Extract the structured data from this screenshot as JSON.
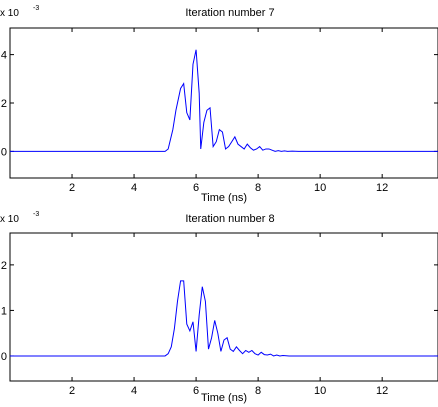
{
  "chart_data": [
    {
      "type": "line",
      "title": "Iteration number 7",
      "xlabel": "Time (ns)",
      "ylabel": "",
      "y_multiplier": {
        "base": "x 10",
        "exponent": "-3"
      },
      "xlim": [
        0,
        13.8
      ],
      "ylim": [
        -0.0011,
        0.0051
      ],
      "xticks": [
        2,
        4,
        6,
        8,
        10,
        12
      ],
      "xtick_labels": [
        "2",
        "4",
        "6",
        "8",
        "10",
        "12"
      ],
      "yticks": [
        0,
        0.002,
        0.004
      ],
      "ytick_labels": [
        "0",
        "2",
        "4"
      ],
      "grid": false,
      "series_color": "#0000ff",
      "series": [
        {
          "x": [
            0.0,
            1.0,
            2.0,
            3.0,
            4.0,
            5.0,
            5.1,
            5.25,
            5.35,
            5.45,
            5.5,
            5.6,
            5.7,
            5.8,
            5.9,
            6.0,
            6.1,
            6.15,
            6.25,
            6.35,
            6.45,
            6.55,
            6.65,
            6.75,
            6.85,
            6.95,
            7.05,
            7.15,
            7.25,
            7.35,
            7.45,
            7.55,
            7.65,
            7.75,
            7.85,
            7.95,
            8.05,
            8.15,
            8.25,
            8.35,
            8.45,
            8.55,
            8.65,
            8.75,
            8.85,
            8.95,
            9.1,
            9.3,
            9.6,
            10.0,
            11.0,
            12.0,
            13.0,
            13.8
          ],
          "values": [
            0.0,
            0.0,
            0.0,
            0.0,
            0.0,
            0.0,
            0.0001,
            0.0009,
            0.0017,
            0.0023,
            0.0026,
            0.0028,
            0.0016,
            0.0013,
            0.0036,
            0.0042,
            0.0024,
            0.0001,
            0.0012,
            0.0017,
            0.0018,
            0.0002,
            0.0004,
            0.0009,
            0.0008,
            0.0001,
            0.0002,
            0.0004,
            0.0006,
            0.0003,
            0.0002,
            0.0001,
            0.0003,
            0.00015,
            5e-05,
            0.0001,
            0.0002,
            5e-05,
            0.0001,
            0.0001,
            5e-05,
            0.0,
            3e-05,
            0.0,
            2e-05,
            0.0,
            1e-05,
            0.0,
            0.0,
            0.0,
            0.0,
            0.0,
            0.0,
            0.0
          ]
        }
      ]
    },
    {
      "type": "line",
      "title": "Iteration number 8",
      "xlabel": "Time (ns)",
      "ylabel": "",
      "y_multiplier": {
        "base": "x 10",
        "exponent": "-3"
      },
      "xlim": [
        0,
        13.8
      ],
      "ylim": [
        -0.00055,
        0.0027
      ],
      "xticks": [
        2,
        4,
        6,
        8,
        10,
        12
      ],
      "xtick_labels": [
        "2",
        "4",
        "6",
        "8",
        "10",
        "12"
      ],
      "yticks": [
        0,
        0.001,
        0.002
      ],
      "ytick_labels": [
        "0",
        "1",
        "2"
      ],
      "grid": false,
      "series_color": "#0000ff",
      "series": [
        {
          "x": [
            0.0,
            1.0,
            2.0,
            3.0,
            4.0,
            5.0,
            5.1,
            5.2,
            5.3,
            5.4,
            5.5,
            5.6,
            5.7,
            5.8,
            5.9,
            6.0,
            6.1,
            6.2,
            6.3,
            6.4,
            6.5,
            6.6,
            6.7,
            6.8,
            6.9,
            7.0,
            7.1,
            7.2,
            7.3,
            7.4,
            7.5,
            7.6,
            7.7,
            7.8,
            7.9,
            8.0,
            8.1,
            8.2,
            8.3,
            8.4,
            8.5,
            8.6,
            8.7,
            8.8,
            9.0,
            9.3,
            9.6,
            10.0,
            11.0,
            12.0,
            13.0,
            13.8
          ],
          "values": [
            0.0,
            0.0,
            0.0,
            0.0,
            0.0,
            0.0,
            5e-05,
            0.0002,
            0.0006,
            0.0012,
            0.00165,
            0.00165,
            0.0007,
            0.00055,
            0.00075,
            0.0001,
            0.0009,
            0.00152,
            0.0012,
            0.00015,
            0.0004,
            0.00078,
            0.0005,
            0.0001,
            0.00035,
            0.0004,
            0.00015,
            0.0001,
            0.0002,
            0.00012,
            5e-05,
            0.00012,
            8e-05,
            0.00012,
            5e-05,
            2e-05,
            8e-05,
            3e-05,
            2e-05,
            4e-05,
            0.0,
            2e-05,
            0.0,
            1e-05,
            0.0,
            0.0,
            0.0,
            0.0,
            0.0,
            0.0,
            0.0,
            0.0
          ]
        }
      ]
    }
  ]
}
